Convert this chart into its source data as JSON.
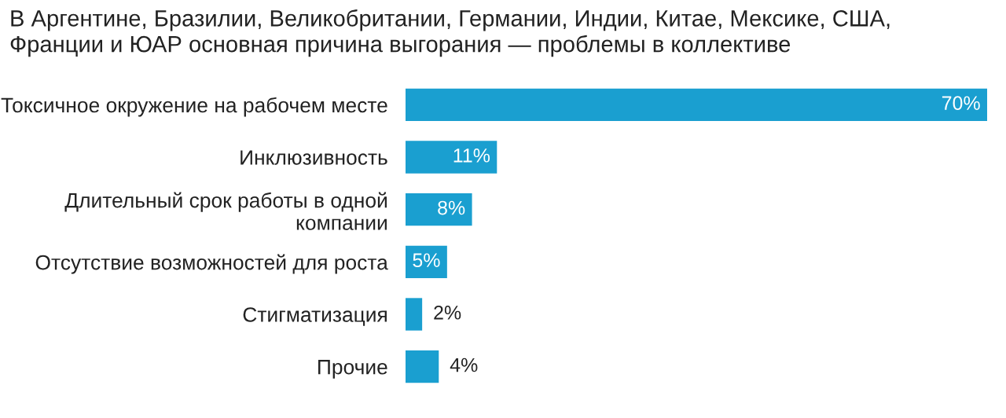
{
  "chart_data": {
    "type": "bar",
    "orientation": "horizontal",
    "title": "В Аргентине, Бразилии, Великобритании, Германии, Индии, Китае, Мексике, США,\nФранции и ЮАР основная причина выгорания — проблемы в коллективе",
    "categories": [
      "Токсичное окружение на рабочем месте",
      "Инклюзивность",
      "Длительный срок работы в одной\nкомпании",
      "Отсутствие возможностей для роста",
      "Стигматизация",
      "Прочие"
    ],
    "values": [
      70,
      11,
      8,
      5,
      2,
      4
    ],
    "value_labels": [
      "70%",
      "11%",
      "8%",
      "5%",
      "2%",
      "4%"
    ],
    "color": "#1a9fd0",
    "tick_labels": "y",
    "grid": false
  }
}
